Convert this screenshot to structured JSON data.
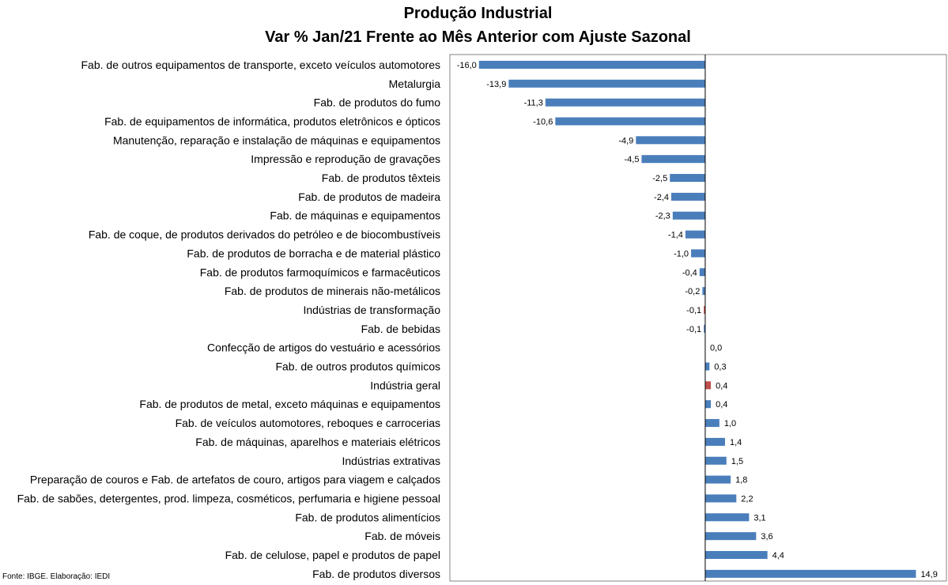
{
  "title": "Produção Industrial",
  "subtitle": "Var % Jan/21 Frente ao Mês Anterior com Ajuste Sazonal",
  "source": "Fonte: IBGE. Elaboração: IEDI",
  "colors": {
    "default": "#4a7ebb",
    "highlight": "#c0504d",
    "axis": "#000000",
    "frame": "#868686"
  },
  "chart_data": {
    "type": "bar",
    "orientation": "horizontal",
    "title": "Produção Industrial",
    "subtitle": "Var % Jan/21 Frente ao Mês Anterior com Ajuste Sazonal",
    "categories": [
      "Fab. de outros equipamentos de transporte, exceto veículos automotores",
      "Metalurgia",
      "Fab. de produtos do fumo",
      "Fab. de equipamentos de informática, produtos eletrônicos e ópticos",
      "Manutenção, reparação e instalação de máquinas e equipamentos",
      "Impressão e reprodução de gravações",
      "Fab. de produtos têxteis",
      "Fab. de produtos de madeira",
      "Fab. de máquinas e equipamentos",
      "Fab. de coque, de produtos derivados do petróleo e de biocombustíveis",
      "Fab. de produtos de borracha e de material plástico",
      "Fab. de produtos farmoquímicos e farmacêuticos",
      "Fab. de produtos de minerais não-metálicos",
      "Indústrias de transformação",
      "Fab. de bebidas",
      "Confecção de artigos do vestuário e acessórios",
      "Fab. de outros produtos químicos",
      "Indústria geral",
      "Fab. de produtos de metal, exceto máquinas e equipamentos",
      "Fab. de veículos automotores, reboques e carrocerias",
      "Fab. de máquinas, aparelhos e materiais elétricos",
      "Indústrias extrativas",
      "Preparação de couros e Fab. de artefatos de couro, artigos para viagem e calçados",
      "Fab. de sabões, detergentes, prod. limpeza, cosméticos, perfumaria e higiene pessoal",
      "Fab. de produtos alimentícios",
      "Fab. de móveis",
      "Fab. de celulose, papel e produtos de papel",
      "Fab. de produtos diversos"
    ],
    "values": [
      -16.0,
      -13.9,
      -11.3,
      -10.6,
      -4.9,
      -4.5,
      -2.5,
      -2.4,
      -2.3,
      -1.4,
      -1.0,
      -0.4,
      -0.2,
      -0.1,
      -0.1,
      0.0,
      0.3,
      0.4,
      0.4,
      1.0,
      1.4,
      1.5,
      1.8,
      2.2,
      3.1,
      3.6,
      4.4,
      14.9
    ],
    "value_labels": [
      "-16,0",
      "-13,9",
      "-11,3",
      "-10,6",
      "-4,9",
      "-4,5",
      "-2,5",
      "-2,4",
      "-2,3",
      "-1,4",
      "-1,0",
      "-0,4",
      "-0,2",
      "-0,1",
      "-0,1",
      "0,0",
      "0,3",
      "0,4",
      "0,4",
      "1,0",
      "1,4",
      "1,5",
      "1,8",
      "2,2",
      "3,1",
      "3,6",
      "4,4",
      "14,9"
    ],
    "highlighted": [
      "Indústrias de transformação",
      "Indústria geral"
    ],
    "xlim": [
      -18.0,
      17.0
    ],
    "grid": false,
    "legend": "none"
  }
}
